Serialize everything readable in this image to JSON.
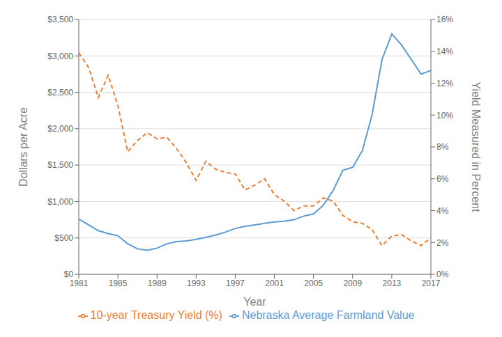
{
  "chart_data": {
    "type": "line",
    "xlabel": "Year",
    "ylabel": "Dollars per Acre",
    "y2label": "Yield Measured in Percent",
    "x": [
      1981,
      1982,
      1983,
      1984,
      1985,
      1986,
      1987,
      1988,
      1989,
      1990,
      1991,
      1992,
      1993,
      1994,
      1995,
      1996,
      1997,
      1998,
      1999,
      2000,
      2001,
      2002,
      2003,
      2004,
      2005,
      2006,
      2007,
      2008,
      2009,
      2010,
      2011,
      2012,
      2013,
      2014,
      2015,
      2016,
      2017
    ],
    "series": [
      {
        "name": "Nebraska Average Farmland Value",
        "color": "#5b9bd5",
        "line_style": "solid",
        "values": [
          760,
          680,
          600,
          560,
          530,
          420,
          350,
          330,
          360,
          420,
          450,
          460,
          480,
          510,
          540,
          580,
          630,
          660,
          680,
          700,
          720,
          730,
          750,
          800,
          830,
          950,
          1150,
          1430,
          1470,
          1700,
          2200,
          2950,
          3300,
          3150,
          2950,
          2750,
          2800
        ]
      },
      {
        "name": "10-year Treasury Yield (%)",
        "color": "#ed7d31",
        "line_style": "dashed",
        "axis": "y2",
        "values": [
          13.9,
          13.0,
          11.1,
          12.5,
          10.6,
          7.7,
          8.4,
          8.9,
          8.5,
          8.6,
          7.9,
          7.0,
          5.9,
          7.1,
          6.6,
          6.4,
          6.3,
          5.3,
          5.6,
          6.0,
          5.0,
          4.6,
          4.0,
          4.3,
          4.3,
          4.8,
          4.6,
          3.7,
          3.3,
          3.2,
          2.8,
          1.8,
          2.4,
          2.5,
          2.1,
          1.8,
          2.3
        ]
      }
    ],
    "xlim": [
      1981,
      2017
    ],
    "xticks": [
      1981,
      1985,
      1989,
      1993,
      1997,
      2001,
      2005,
      2009,
      2013,
      2017
    ],
    "ylim": [
      0,
      3500
    ],
    "yticks": [
      {
        "value": 0,
        "label": "$0"
      },
      {
        "value": 500,
        "label": "$500"
      },
      {
        "value": 1000,
        "label": "$1,000"
      },
      {
        "value": 1500,
        "label": "$1,500"
      },
      {
        "value": 2000,
        "label": "$2,000"
      },
      {
        "value": 2500,
        "label": "$2,500"
      },
      {
        "value": 3000,
        "label": "$3,000"
      },
      {
        "value": 3500,
        "label": "$3,500"
      }
    ],
    "y2lim": [
      0,
      16
    ],
    "y2ticks": [
      {
        "value": 0,
        "label": "0%"
      },
      {
        "value": 2,
        "label": "2%"
      },
      {
        "value": 4,
        "label": "4%"
      },
      {
        "value": 6,
        "label": "6%"
      },
      {
        "value": 8,
        "label": "8%"
      },
      {
        "value": 10,
        "label": "10%"
      },
      {
        "value": 12,
        "label": "12%"
      },
      {
        "value": 14,
        "label": "14%"
      },
      {
        "value": 16,
        "label": "16%"
      }
    ],
    "grid": "y",
    "legend": "bottom"
  }
}
